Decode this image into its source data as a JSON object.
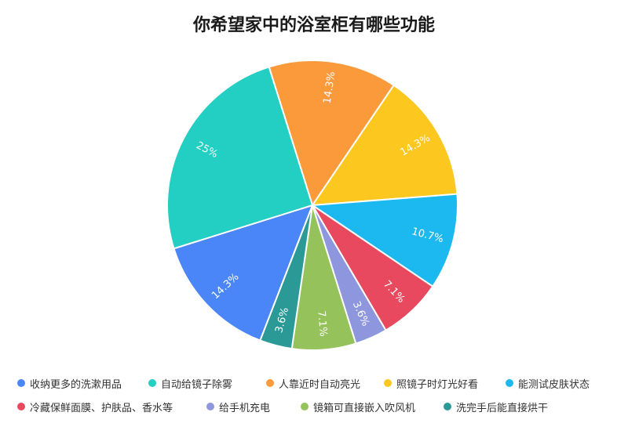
{
  "chart_data": {
    "type": "pie",
    "title": "你希望家中的浴室柜有哪些功能",
    "slices": [
      {
        "label": "收纳更多的洗漱用品",
        "value": 14.3,
        "display": "14.3%",
        "color": "#4a86f7"
      },
      {
        "label": "自动给镜子除雾",
        "value": 25,
        "display": "25%",
        "color": "#22cfc2"
      },
      {
        "label": "人靠近时自动亮光",
        "value": 14.3,
        "display": "14.3%",
        "color": "#fa9a3a"
      },
      {
        "label": "照镜子时灯光好看",
        "value": 14.3,
        "display": "14.3%",
        "color": "#fcc71f"
      },
      {
        "label": "能测试皮肤状态",
        "value": 10.7,
        "display": "10.7%",
        "color": "#1cb8f0"
      },
      {
        "label": "冷藏保鲜面膜、护肤品、香水等",
        "value": 7.1,
        "display": "7.1%",
        "color": "#e8495e"
      },
      {
        "label": "给手机充电",
        "value": 3.6,
        "display": "3.6%",
        "color": "#8e97dd"
      },
      {
        "label": "镜箱可直接嵌入吹风机",
        "value": 7.1,
        "display": "7.1%",
        "color": "#95c25a"
      },
      {
        "label": "洗完手后能直接烘干",
        "value": 3.6,
        "display": "3.6%",
        "color": "#2b9a97"
      }
    ],
    "legend_position": "bottom"
  }
}
